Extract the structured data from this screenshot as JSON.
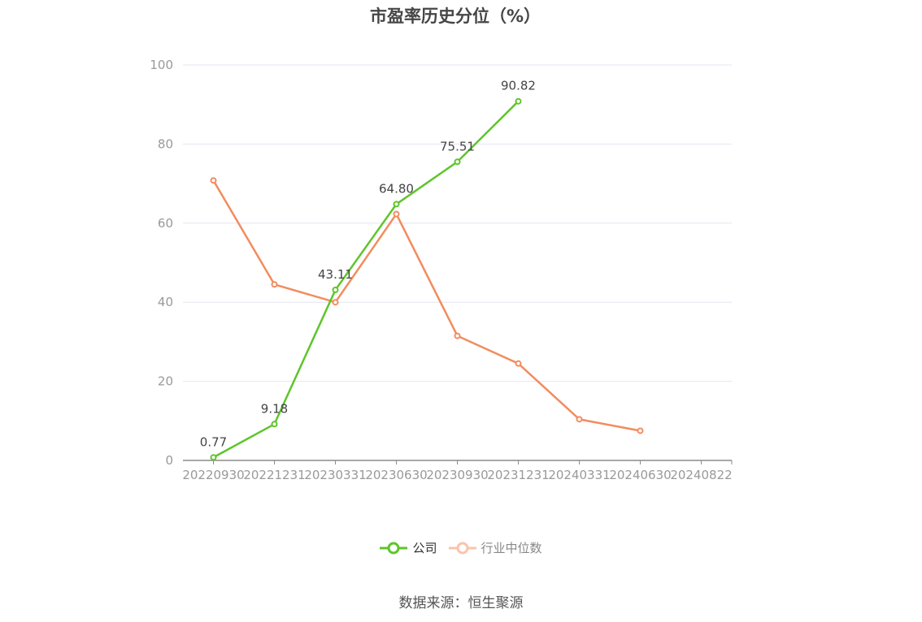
{
  "chart_data": {
    "type": "line",
    "title": "市盈率历史分位（%）",
    "categories": [
      "20220930",
      "20221231",
      "20230331",
      "20230630",
      "20230930",
      "20231231",
      "20240331",
      "20240630",
      "20240822"
    ],
    "ylim": [
      0,
      100
    ],
    "yticks": [
      0,
      20,
      40,
      60,
      80,
      100
    ],
    "grid": true,
    "legend_position": "bottom",
    "series": [
      {
        "name": "公司",
        "color": "#5ec52b",
        "values": [
          0.77,
          9.18,
          43.11,
          64.8,
          75.51,
          90.82,
          null,
          null,
          null
        ],
        "labels": [
          "0.77",
          "9.18",
          "43.11",
          "64.80",
          "75.51",
          "90.82",
          "",
          "",
          ""
        ]
      },
      {
        "name": "行业中位数",
        "color": "#f28c5e",
        "values": [
          70.8,
          44.5,
          40.0,
          62.3,
          31.5,
          24.5,
          10.4,
          7.5,
          null
        ]
      }
    ]
  },
  "source_text": "数据来源：恒生聚源"
}
